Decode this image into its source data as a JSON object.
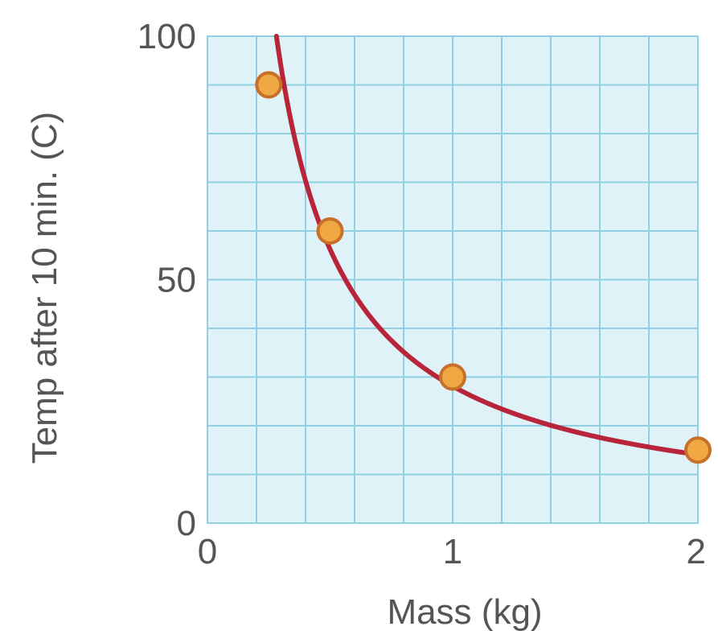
{
  "chart_data": {
    "type": "scatter",
    "title": "",
    "xlabel": "Mass (kg)",
    "ylabel": "Temp after 10 min. (C)",
    "xlim": [
      0,
      2
    ],
    "ylim": [
      0,
      100
    ],
    "x_ticks": [
      "0",
      "1",
      "2"
    ],
    "y_ticks": [
      "0",
      "50",
      "100"
    ],
    "grid": true,
    "trend_curve": "smooth curve through points",
    "series": [
      {
        "x": [
          0.25,
          0.5,
          1,
          2
        ],
        "y": [
          90,
          60,
          30,
          15
        ]
      }
    ],
    "colors": {
      "plot_bg": "#dff2f8",
      "grid": "#8fd0e3",
      "curve": "#b8253a",
      "marker_fill": "#f0a845",
      "marker_stroke": "#c8702a"
    }
  }
}
